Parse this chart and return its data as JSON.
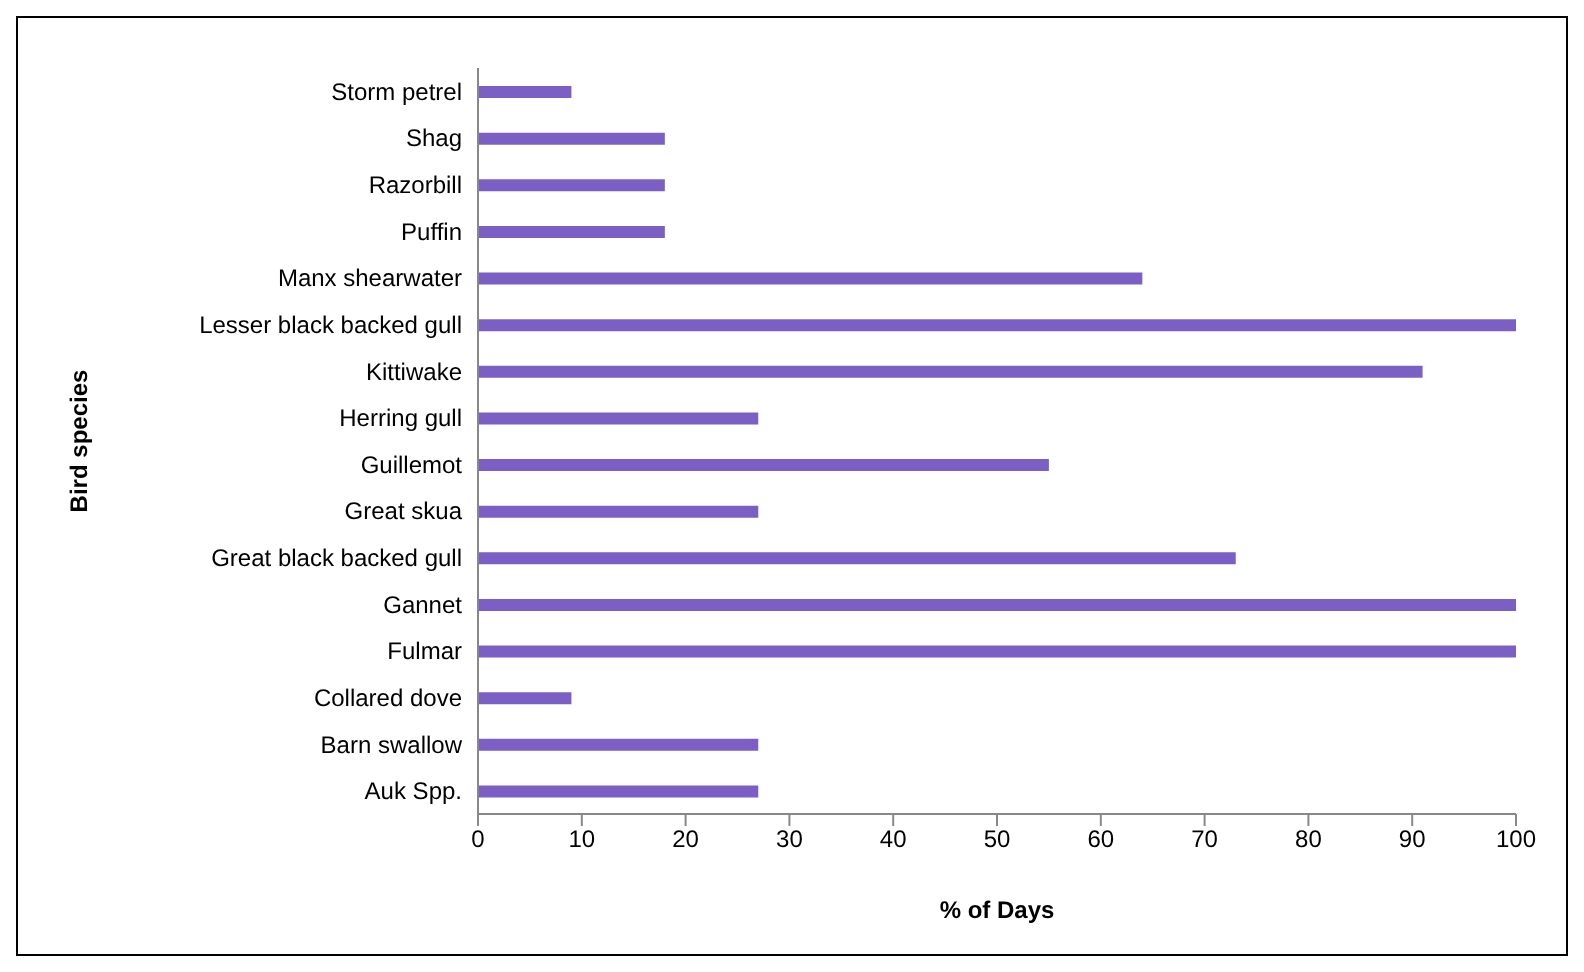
{
  "chart_data": {
    "type": "bar",
    "orientation": "horizontal",
    "xlabel": "% of Days",
    "ylabel": "Bird species",
    "categories": [
      "Storm petrel",
      "Shag",
      "Razorbill",
      "Puffin",
      "Manx shearwater",
      "Lesser black backed gull",
      "Kittiwake",
      "Herring gull",
      "Guillemot",
      "Great skua",
      "Great black backed gull",
      "Gannet",
      "Fulmar",
      "Collared dove",
      "Barn swallow",
      "Auk Spp."
    ],
    "values": [
      9,
      18,
      18,
      18,
      64,
      100,
      91,
      27,
      55,
      27,
      73,
      100,
      100,
      9,
      27,
      27
    ],
    "color": "#7b5fc4",
    "xlim": [
      0,
      100
    ],
    "xticks": [
      0,
      10,
      20,
      30,
      40,
      50,
      60,
      70,
      80,
      90,
      100
    ],
    "grid": false,
    "legend": false
  }
}
